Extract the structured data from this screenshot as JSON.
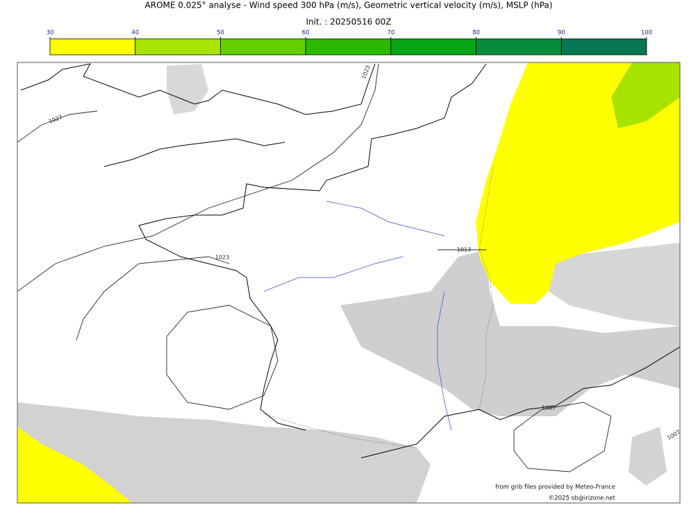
{
  "header": {
    "title": "AROME 0.025° analyse - Wind speed 300 hPa (m/s), Geometric vertical velocity (m/s), MSLP (hPa)",
    "init": "Init. : 20250516 00Z"
  },
  "map": {
    "colorbar": {
      "range": [
        30,
        100
      ],
      "ticks": [
        30,
        40,
        50,
        60,
        70,
        80,
        90,
        100
      ],
      "colors": [
        "#ffff00",
        "#a6e400",
        "#62d000",
        "#2cba00",
        "#08a418",
        "#088c3c",
        "#087652"
      ]
    },
    "isobar_labels": [
      "1027",
      "1023",
      "1023",
      "1013",
      "1007",
      "1007"
    ],
    "credits": [
      "from grib files provided by Meteo-France",
      "©2025 sb@irizone.net"
    ]
  }
}
